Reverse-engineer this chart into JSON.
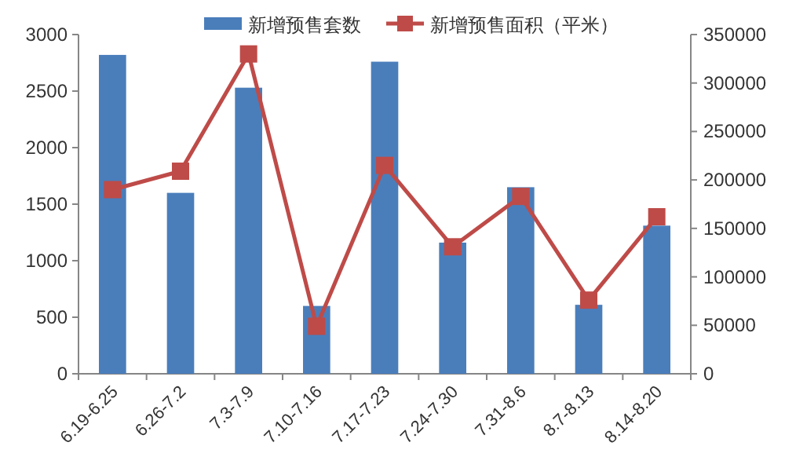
{
  "chart_data": {
    "type": "bar",
    "categories": [
      "6.19-6.25",
      "6.26-7.2",
      "7.3-7.9",
      "7.10-7.16",
      "7.17-7.23",
      "7.24-7.30",
      "7.31-8.6",
      "8.7-8.13",
      "8.14-8.20"
    ],
    "series": [
      {
        "name": "新增预售套数",
        "color": "#4a7ebb",
        "values": [
          2820,
          1600,
          2530,
          600,
          2760,
          1160,
          1650,
          610,
          1310
        ]
      },
      {
        "name": "新增预售面积（平米）",
        "type": "line",
        "axis": "y2",
        "color": "#be4b48",
        "marker": "square",
        "values": [
          190000,
          209000,
          330000,
          49000,
          215000,
          131000,
          183000,
          76000,
          162000
        ]
      }
    ],
    "ylim": [
      0,
      3000
    ],
    "yticks": [
      0,
      500,
      1000,
      1500,
      2000,
      2500,
      3000
    ],
    "y2lim": [
      0,
      350000
    ],
    "y2ticks": [
      0,
      50000,
      100000,
      150000,
      200000,
      250000,
      300000,
      350000
    ],
    "legend": "top",
    "grid": false
  }
}
